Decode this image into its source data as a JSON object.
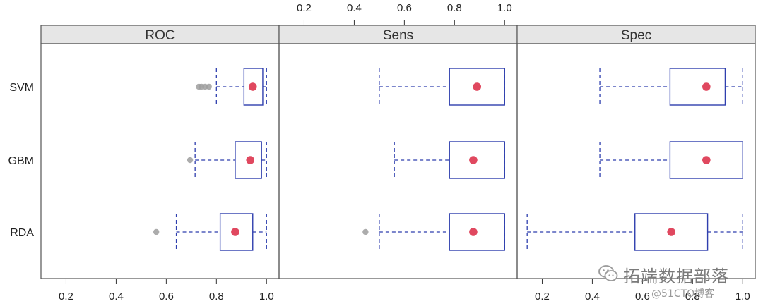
{
  "colors": {
    "box": "#2f3fae",
    "median_dot": "#e0485f",
    "outlier": "#9e9e9e",
    "strip_bg": "#e6e6e6",
    "frame": "#555555"
  },
  "chart_data": {
    "type": "boxplot",
    "panels": [
      {
        "title": "ROC",
        "xlim": [
          0.1,
          1.05
        ],
        "ticks": [
          "0.2",
          "0.4",
          "0.6",
          "0.8",
          "1.0"
        ],
        "tick_values": [
          0.2,
          0.4,
          0.6,
          0.8,
          1.0
        ],
        "tick_side": "bottom",
        "boxes": [
          {
            "model": "SVM",
            "whisker_low": 0.8,
            "q1": 0.91,
            "median": 0.945,
            "q3": 0.985,
            "whisker_high": 1.0,
            "outliers": [
              0.73,
              0.74,
              0.755,
              0.77
            ]
          },
          {
            "model": "GBM",
            "whisker_low": 0.715,
            "q1": 0.875,
            "median": 0.935,
            "q3": 0.98,
            "whisker_high": 1.0,
            "outliers": [
              0.695
            ]
          },
          {
            "model": "RDA",
            "whisker_low": 0.64,
            "q1": 0.815,
            "median": 0.875,
            "q3": 0.945,
            "whisker_high": 1.0,
            "outliers": [
              0.56
            ]
          }
        ]
      },
      {
        "title": "Sens",
        "xlim": [
          0.1,
          1.05
        ],
        "ticks": [
          "0.2",
          "0.4",
          "0.6",
          "0.8",
          "1.0"
        ],
        "tick_values": [
          0.2,
          0.4,
          0.6,
          0.8,
          1.0
        ],
        "tick_side": "top",
        "boxes": [
          {
            "model": "SVM",
            "whisker_low": 0.5,
            "q1": 0.78,
            "median": 0.89,
            "q3": 1.0,
            "whisker_high": 1.0,
            "outliers": []
          },
          {
            "model": "GBM",
            "whisker_low": 0.56,
            "q1": 0.78,
            "median": 0.875,
            "q3": 1.0,
            "whisker_high": 1.0,
            "outliers": []
          },
          {
            "model": "RDA",
            "whisker_low": 0.5,
            "q1": 0.78,
            "median": 0.875,
            "q3": 1.0,
            "whisker_high": 1.0,
            "outliers": [
              0.445
            ]
          }
        ]
      },
      {
        "title": "Spec",
        "xlim": [
          0.1,
          1.05
        ],
        "ticks": [
          "0.2",
          "0.4",
          "0.6",
          "0.8",
          "1.0"
        ],
        "tick_values": [
          0.2,
          0.4,
          0.6,
          0.8,
          1.0
        ],
        "tick_side": "bottom",
        "boxes": [
          {
            "model": "SVM",
            "whisker_low": 0.43,
            "q1": 0.71,
            "median": 0.855,
            "q3": 0.93,
            "whisker_high": 1.0,
            "outliers": []
          },
          {
            "model": "GBM",
            "whisker_low": 0.43,
            "q1": 0.71,
            "median": 0.855,
            "q3": 1.0,
            "whisker_high": 1.0,
            "outliers": []
          },
          {
            "model": "RDA",
            "whisker_low": 0.14,
            "q1": 0.57,
            "median": 0.715,
            "q3": 0.86,
            "whisker_high": 1.0,
            "outliers": []
          }
        ]
      }
    ],
    "categories": [
      "SVM",
      "GBM",
      "RDA"
    ],
    "grid": false
  },
  "watermark": {
    "line1": "拓端数据部落",
    "line2": "@51CTO博客"
  }
}
